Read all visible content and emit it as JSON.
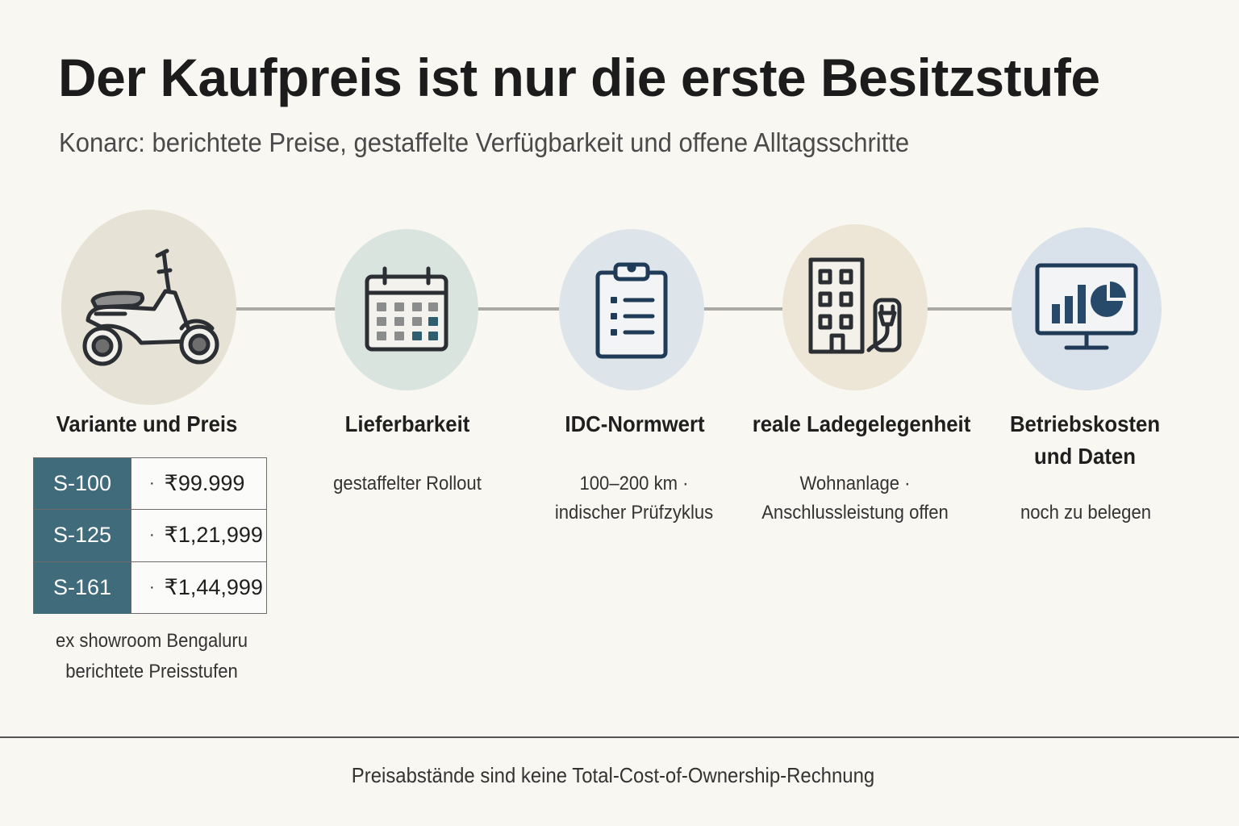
{
  "title": "Der Kaufpreis ist nur die erste Besitzstufe",
  "subtitle": "Konarc: berichtete Preise, gestaffelte Verfügbarkeit und offene Alltagsschritte",
  "steps": [
    {
      "icon": "scooter-icon",
      "title": "Variante und Preis",
      "desc": [],
      "bg": "#e7e2d6"
    },
    {
      "icon": "calendar-icon",
      "title": "Lieferbarkeit",
      "desc": [
        "gestaffelter Rollout"
      ],
      "bg": "#dae4de"
    },
    {
      "icon": "clipboard-icon",
      "title": "IDC-Normwert",
      "desc": [
        "100–200 km ·",
        "indischer Prüfzyklus"
      ],
      "bg": "#dde5ea"
    },
    {
      "icon": "building-charger-icon",
      "title": "reale Ladegelegenheit",
      "desc": [
        "Wohnanlage ·",
        "Anschlussleistung offen"
      ],
      "bg": "#ede6d6"
    },
    {
      "icon": "monitor-chart-icon",
      "title_lines": [
        "Betriebskosten",
        "und Daten"
      ],
      "desc": [
        "noch zu belegen"
      ],
      "bg": "#d9e2ea"
    }
  ],
  "prices": [
    {
      "variant": "S-100",
      "price": "₹99.999"
    },
    {
      "variant": "S-125",
      "price": "₹1,21,999"
    },
    {
      "variant": "S-161",
      "price": "₹1,44,999"
    }
  ],
  "price_separator": "·",
  "price_note": [
    "ex showroom Bengaluru",
    "berichtete Preisstufen"
  ],
  "footer": "Preisabstände sind keine Total-Cost-of-Ownership-Rechnung",
  "colors": {
    "accent": "#3f6b7b",
    "icon_stroke": "#2b2f33",
    "icon_teal": "#2f5f6e",
    "icon_navy": "#274a6b"
  }
}
